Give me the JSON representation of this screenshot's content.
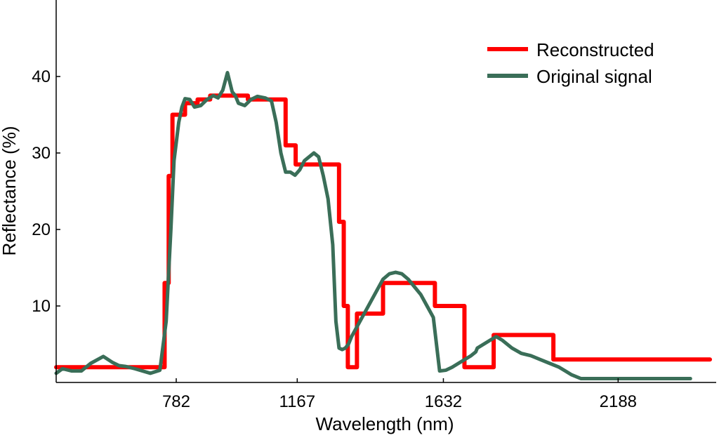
{
  "chart_data": {
    "type": "line",
    "title": "",
    "xlabel": "Wavelength (nm)",
    "ylabel": "Reflectance (%)",
    "xlim": [
      400,
      2500
    ],
    "ylim": [
      0,
      50
    ],
    "grid": false,
    "legend_position": "top-right",
    "x_ticks": [
      {
        "value": 782,
        "label": "782"
      },
      {
        "value": 1167,
        "label": "1167"
      },
      {
        "value": 1632,
        "label": "1632"
      },
      {
        "value": 2188,
        "label": "2188"
      }
    ],
    "y_ticks": [
      {
        "value": 10,
        "label": "10"
      },
      {
        "value": 20,
        "label": "20"
      },
      {
        "value": 30,
        "label": "30"
      },
      {
        "value": 40,
        "label": "40"
      }
    ],
    "series": [
      {
        "name": "Reconstructed",
        "color": "#ff0000",
        "style": "step",
        "x": [
          400,
          730,
          745,
          758,
          770,
          810,
          850,
          890,
          1010,
          1130,
          1162,
          1250,
          1300,
          1315,
          1328,
          1357,
          1365,
          1372,
          1440,
          1527,
          1605,
          1699,
          1767,
          1792,
          1853,
          1896,
          1982,
          2005,
          2080,
          2149,
          2197,
          2208,
          2310,
          2418
        ],
        "values": [
          2.0,
          2.0,
          13.0,
          27.0,
          35.0,
          36.5,
          37.0,
          37.5,
          37.0,
          31.0,
          28.5,
          28.5,
          21.0,
          10.0,
          2.0,
          9.0,
          9.0,
          9.0,
          13.0,
          13.0,
          10.0,
          2.0,
          2.0,
          6.2,
          6.2,
          6.2,
          3.0,
          3.0,
          3.0,
          3.0,
          3.0,
          3.0,
          3.0,
          3.0
        ]
      },
      {
        "name": "Original signal",
        "color": "#3a6e58",
        "style": "line",
        "x": [
          400,
          420,
          450,
          480,
          510,
          550,
          580,
          600,
          620,
          650,
          700,
          730,
          750,
          765,
          775,
          790,
          800,
          810,
          825,
          840,
          860,
          880,
          900,
          915,
          930,
          945,
          960,
          970,
          980,
          1000,
          1020,
          1040,
          1065,
          1085,
          1100,
          1115,
          1130,
          1145,
          1160,
          1175,
          1190,
          1205,
          1220,
          1235,
          1250,
          1265,
          1280,
          1290,
          1300,
          1310,
          1320,
          1330,
          1340,
          1360,
          1380,
          1400,
          1420,
          1440,
          1460,
          1480,
          1500,
          1520,
          1540,
          1560,
          1580,
          1600,
          1620,
          1640,
          1660,
          1680,
          1700,
          1720,
          1735,
          1740,
          1760,
          1780,
          1800,
          1820,
          1850,
          1880,
          1910,
          1940,
          1970,
          2000,
          2020,
          2040,
          2070,
          2100,
          2130,
          2160,
          2190,
          2220,
          2250,
          2280,
          2310,
          2340,
          2370,
          2400,
          2418
        ],
        "values": [
          1.2,
          1.8,
          1.5,
          1.5,
          2.5,
          3.4,
          2.6,
          2.2,
          2.1,
          1.8,
          1.2,
          1.6,
          8.0,
          20.0,
          29.0,
          34.0,
          36.0,
          37.1,
          37.0,
          36.0,
          36.2,
          37.0,
          37.5,
          37.2,
          38.2,
          40.5,
          38.0,
          37.5,
          36.5,
          36.2,
          37.0,
          37.4,
          37.2,
          36.8,
          34.0,
          30.0,
          27.5,
          27.5,
          27.1,
          27.8,
          29.0,
          29.5,
          30.0,
          29.5,
          27.0,
          24.0,
          18.0,
          8.0,
          4.5,
          4.3,
          4.5,
          5.0,
          6.0,
          7.5,
          9.0,
          10.5,
          12.0,
          13.5,
          14.2,
          14.4,
          14.2,
          13.5,
          12.5,
          11.5,
          10.0,
          8.5,
          1.5,
          1.6,
          2.0,
          2.5,
          3.0,
          3.5,
          4.0,
          4.5,
          5.0,
          5.5,
          6.0,
          5.5,
          4.5,
          3.8,
          3.5,
          3.0,
          2.5,
          2.0,
          1.5,
          1.0,
          0.5,
          0.5,
          0.5,
          0.5,
          0.5,
          0.5,
          0.5,
          0.5,
          0.5,
          0.5,
          0.5,
          0.5,
          0.5
        ]
      }
    ]
  }
}
